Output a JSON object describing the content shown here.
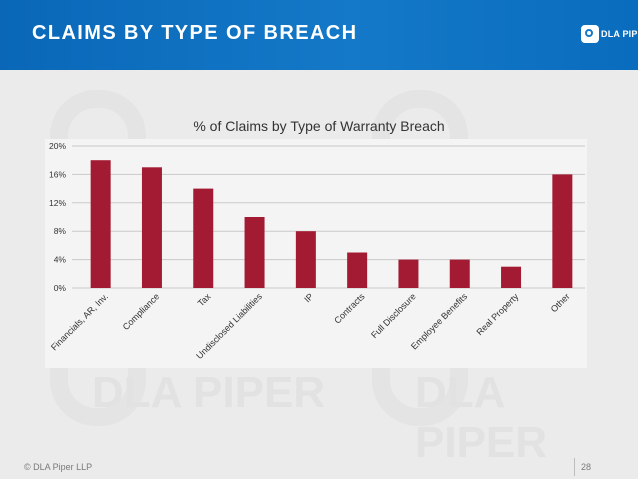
{
  "header": {
    "title": "CLAIMS BY TYPE OF BREACH",
    "logo_text": "DLA PIPER"
  },
  "watermark": {
    "text_left": "DLA PIPER",
    "text_right": "DLA PIPER"
  },
  "colors": {
    "header_blue": "#1479c8",
    "bar": "#a31b32",
    "background": "#ebebeb"
  },
  "chart_data": {
    "type": "bar",
    "title": "% of Claims by Type of Warranty Breach",
    "categories": [
      "Financials, AR, Inv.",
      "Compliance",
      "Tax",
      "Undisclosed Liabilities",
      "IP",
      "Contracts",
      "Full Disclosure",
      "Employee Benefits",
      "Real Property",
      "Other"
    ],
    "values": [
      18,
      17,
      14,
      10,
      8,
      5,
      4,
      4,
      3,
      16
    ],
    "yticks": [
      "0%",
      "4%",
      "8%",
      "12%",
      "16%",
      "20%"
    ],
    "ylim": [
      0,
      20
    ],
    "grid": true,
    "xlabel": "",
    "ylabel": ""
  },
  "footer": {
    "copyright": "© DLA Piper LLP",
    "page": "28"
  }
}
